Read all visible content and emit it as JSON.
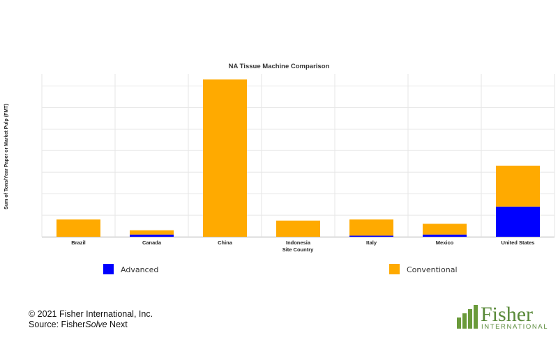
{
  "chart_data": {
    "type": "bar",
    "stacked": true,
    "title": "NA Tissue Machine Comparison",
    "xlabel": "Site Country",
    "ylabel": "Sum of Tons/Year Paper or Market Pulp (FMT)",
    "categories": [
      "Brazil",
      "Canada",
      "China",
      "Indonesia",
      "Italy",
      "Mexico",
      "United States"
    ],
    "series": [
      {
        "name": "Advanced",
        "color": "#0000ff",
        "values": [
          0,
          1,
          0,
          0,
          0.5,
          1,
          14
        ]
      },
      {
        "name": "Conventional",
        "color": "#ffaa00",
        "values": [
          8,
          2,
          73,
          7.5,
          7.5,
          5,
          19
        ]
      }
    ],
    "ylim": [
      0,
      75
    ],
    "grid": true,
    "legend": "bottom"
  },
  "footer": {
    "copyright": "© 2021 Fisher International, Inc.",
    "source_prefix": "Source: Fisher",
    "source_italic": "Solve",
    "source_suffix": " Next"
  },
  "logo": {
    "name": "Fisher",
    "tagline": "INTERNATIONAL",
    "icon": "fisher-logo-icon",
    "color": "#5a8a3a"
  }
}
